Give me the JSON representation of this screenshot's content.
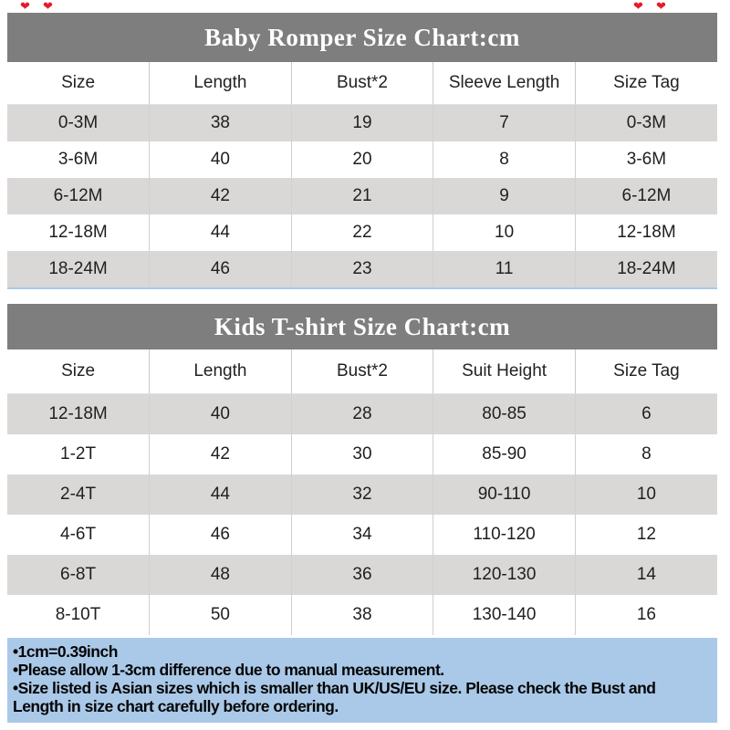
{
  "decorations": {
    "heart_icon": "❤",
    "heart_color": "#e8192c"
  },
  "chart_data": [
    {
      "type": "table",
      "title": "Baby Romper Size Chart:cm",
      "columns": [
        "Size",
        "Length",
        "Bust*2",
        "Sleeve Length",
        "Size Tag"
      ],
      "rows": [
        [
          "0-3M",
          "38",
          "19",
          "7",
          "0-3M"
        ],
        [
          "3-6M",
          "40",
          "20",
          "8",
          "3-6M"
        ],
        [
          "6-12M",
          "42",
          "21",
          "9",
          "6-12M"
        ],
        [
          "12-18M",
          "44",
          "22",
          "10",
          "12-18M"
        ],
        [
          "18-24M",
          "46",
          "23",
          "11",
          "18-24M"
        ]
      ]
    },
    {
      "type": "table",
      "title": "Kids T-shirt Size Chart:cm",
      "columns": [
        "Size",
        "Length",
        "Bust*2",
        "Suit Height",
        "Size Tag"
      ],
      "rows": [
        [
          "12-18M",
          "40",
          "28",
          "80-85",
          "6"
        ],
        [
          "1-2T",
          "42",
          "30",
          "85-90",
          "8"
        ],
        [
          "2-4T",
          "44",
          "32",
          "90-110",
          "10"
        ],
        [
          "4-6T",
          "46",
          "34",
          "110-120",
          "12"
        ],
        [
          "6-8T",
          "48",
          "36",
          "120-130",
          "14"
        ],
        [
          "8-10T",
          "50",
          "38",
          "130-140",
          "16"
        ]
      ]
    }
  ],
  "notes": {
    "lines": [
      "•1cm=0.39inch",
      "•Please allow 1-3cm difference due to manual measurement.",
      "•Size listed is Asian sizes which is smaller than UK/US/EU size. Please check the Bust and Length in size chart carefully before ordering."
    ]
  },
  "colors": {
    "title_band": "#7e7e7e",
    "row_alt": "#d9d8d6",
    "notes_bg": "#aac9e8",
    "divider": "#aac9e8",
    "title_text": "#ffffff",
    "body_text": "#1f1f1f"
  }
}
